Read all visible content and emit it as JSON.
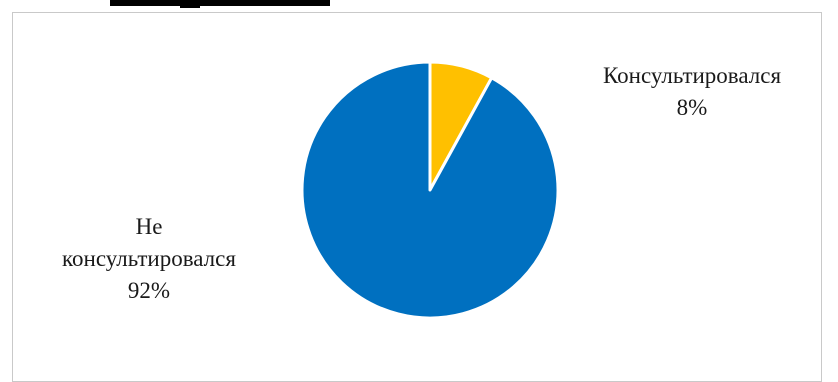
{
  "chart_data": {
    "type": "pie",
    "title": "",
    "slices": [
      {
        "label": "Консультировался",
        "label_lines": [
          "Консультировался"
        ],
        "value": 8,
        "percent_text": "8%",
        "color": "#FFC000"
      },
      {
        "label": "Не консультировался",
        "label_lines": [
          "Не",
          "консультировался"
        ],
        "value": 92,
        "percent_text": "92%",
        "color": "#0070C0"
      }
    ],
    "start_angle_deg": 0,
    "direction": "clockwise",
    "legend": "none",
    "data_labels": "outside"
  }
}
